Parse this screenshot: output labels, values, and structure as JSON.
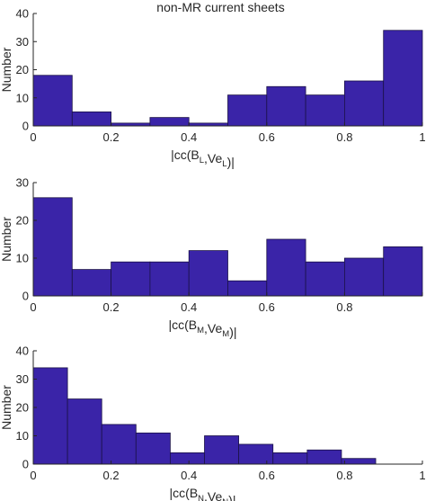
{
  "chart_data": [
    {
      "type": "bar",
      "title": "non-MR current sheets",
      "xlabel": {
        "main": "|cc(B",
        "sub1": "L",
        "mid": ",Ve",
        "sub2": "L",
        "end": ")|"
      },
      "ylabel": "Number",
      "xlim": [
        0,
        1
      ],
      "ylim": [
        0,
        40
      ],
      "xticks": [
        "0",
        "0.2",
        "0.4",
        "0.6",
        "0.8",
        "1"
      ],
      "yticks": [
        "0",
        "10",
        "20",
        "30",
        "40"
      ],
      "bin_edges": [
        0,
        0.1,
        0.2,
        0.3,
        0.4,
        0.5,
        0.6,
        0.7,
        0.8,
        0.9,
        1.0
      ],
      "values": [
        18,
        5,
        1,
        3,
        1,
        11,
        14,
        11,
        16,
        34
      ]
    },
    {
      "type": "bar",
      "title": "",
      "xlabel": {
        "main": "|cc(B",
        "sub1": "M",
        "mid": ",Ve",
        "sub2": "M",
        "end": ")|"
      },
      "ylabel": "Number",
      "xlim": [
        0,
        1
      ],
      "ylim": [
        0,
        30
      ],
      "xticks": [
        "0",
        "0.2",
        "0.4",
        "0.6",
        "0.8",
        ""
      ],
      "yticks": [
        "0",
        "10",
        "20",
        "30"
      ],
      "bin_edges": [
        0,
        0.1,
        0.2,
        0.3,
        0.4,
        0.5,
        0.6,
        0.7,
        0.8,
        0.9,
        1.0
      ],
      "values": [
        26,
        7,
        9,
        9,
        12,
        4,
        15,
        9,
        10,
        13
      ]
    },
    {
      "type": "bar",
      "title": "",
      "xlabel": {
        "main": "|cc(B",
        "sub1": "N",
        "mid": ",Ve",
        "sub2": "N",
        "end": ")|"
      },
      "ylabel": "Number",
      "xlim": [
        0,
        1
      ],
      "ylim": [
        0,
        40
      ],
      "xticks": [
        "0",
        "0.2",
        "0.4",
        "0.6",
        "0.8",
        "1"
      ],
      "yticks": [
        "0",
        "10",
        "20",
        "30",
        "40"
      ],
      "bin_edges": [
        0,
        0.088,
        0.176,
        0.264,
        0.352,
        0.44,
        0.528,
        0.616,
        0.704,
        0.792,
        0.88
      ],
      "values": [
        34,
        23,
        14,
        11,
        4,
        10,
        7,
        4,
        5,
        2
      ]
    }
  ],
  "colors": {
    "bar_fill": "#3a24a8",
    "bar_edge": "#1b1248",
    "axis": "#262626"
  }
}
